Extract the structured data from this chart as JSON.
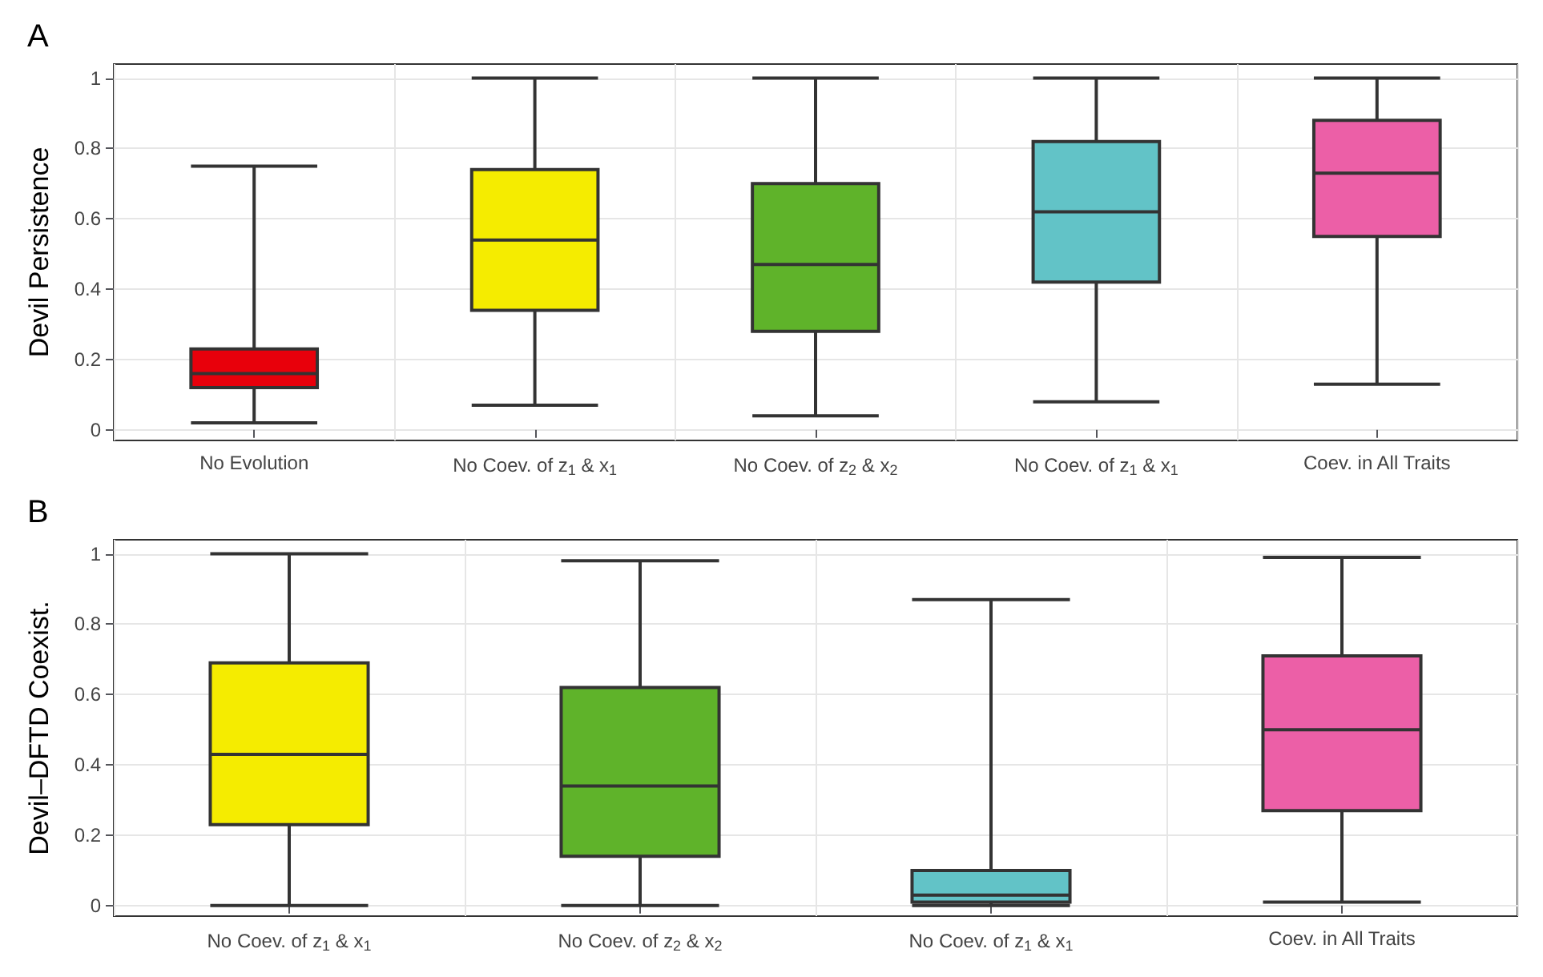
{
  "chart_data": [
    {
      "type": "box",
      "title": "A",
      "ylabel": "Devil Persistence",
      "categories": [
        "No Evolution",
        "No Coev. of z$_{1}$ & x$_{1}$",
        "No Coev. of z$_{2}$ & x$_{2}$",
        "No Coev. of z$_{1}$ & x$_{1}$",
        "Coev. in All Traits"
      ],
      "colors": [
        "#e8000b",
        "#f5ec00",
        "#5fb32a",
        "#62c3c7",
        "#ec5fa7"
      ],
      "boxes": [
        {
          "low": 0.02,
          "q1": 0.12,
          "median": 0.16,
          "q3": 0.23,
          "high": 0.75
        },
        {
          "low": 0.07,
          "q1": 0.34,
          "median": 0.54,
          "q3": 0.74,
          "high": 1
        },
        {
          "low": 0.04,
          "q1": 0.28,
          "median": 0.47,
          "q3": 0.7,
          "high": 1
        },
        {
          "low": 0.08,
          "q1": 0.42,
          "median": 0.62,
          "q3": 0.82,
          "high": 1
        },
        {
          "low": 0.13,
          "q1": 0.55,
          "median": 0.73,
          "q3": 0.88,
          "high": 1
        }
      ],
      "ylim": [
        -0.03,
        1.04
      ],
      "yticks": [
        0,
        0.2,
        0.4,
        0.6,
        0.8,
        1
      ],
      "grid": true
    },
    {
      "type": "box",
      "title": "B",
      "ylabel": "Devil–DFTD Coexist.",
      "categories": [
        "No Coev. of z$_{1}$ & x$_{1}$",
        "No Coev. of z$_{2}$ & x$_{2}$",
        "No Coev. of z$_{1}$ & x$_{1}$",
        "Coev. in All Traits"
      ],
      "colors": [
        "#f5ec00",
        "#5fb32a",
        "#62c3c7",
        "#ec5fa7"
      ],
      "boxes": [
        {
          "low": 0,
          "q1": 0.23,
          "median": 0.43,
          "q3": 0.69,
          "high": 1
        },
        {
          "low": 0,
          "q1": 0.14,
          "median": 0.34,
          "q3": 0.62,
          "high": 0.98
        },
        {
          "low": 0,
          "q1": 0.01,
          "median": 0.03,
          "q3": 0.1,
          "high": 0.87
        },
        {
          "low": 0.01,
          "q1": 0.27,
          "median": 0.5,
          "q3": 0.71,
          "high": 0.99
        }
      ],
      "ylim": [
        -0.03,
        1.04
      ],
      "yticks": [
        0,
        0.2,
        0.4,
        0.6,
        0.8,
        1
      ],
      "grid": true
    }
  ]
}
